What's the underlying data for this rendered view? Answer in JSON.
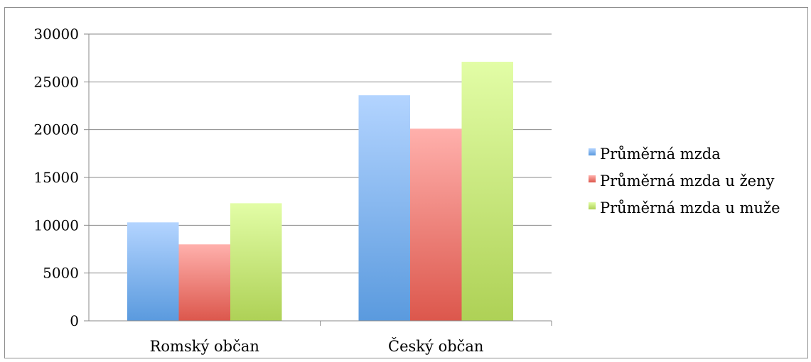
{
  "chart_data": {
    "type": "bar",
    "categories": [
      "Romský občan",
      "Český občan"
    ],
    "series": [
      {
        "name": "Průměrná mzda",
        "values": [
          10300,
          23600
        ]
      },
      {
        "name": "Průměrná mzda u ženy",
        "values": [
          8000,
          20100
        ]
      },
      {
        "name": "Průměrná mzda u muže",
        "values": [
          12300,
          27100
        ]
      }
    ],
    "ylim": [
      0,
      30000
    ],
    "yticks": [
      0,
      5000,
      10000,
      15000,
      20000,
      25000,
      30000
    ],
    "grid": true,
    "legend": "right",
    "colors": [
      {
        "top": "#b3d4ff",
        "bottom": "#5a9ade"
      },
      {
        "top": "#ffb0ac",
        "bottom": "#dc574c"
      },
      {
        "top": "#e2fda6",
        "bottom": "#aed156"
      }
    ]
  }
}
